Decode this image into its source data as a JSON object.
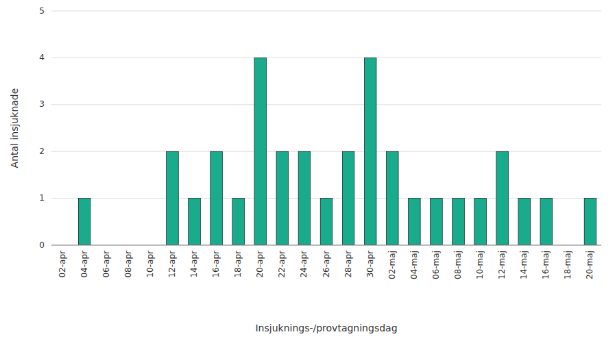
{
  "chart_data": {
    "type": "bar",
    "categories": [
      "02-apr",
      "04-apr",
      "06-apr",
      "08-apr",
      "10-apr",
      "12-apr",
      "14-apr",
      "16-apr",
      "18-apr",
      "20-apr",
      "22-apr",
      "24-apr",
      "26-apr",
      "28-apr",
      "30-apr",
      "02-maj",
      "04-maj",
      "06-maj",
      "08-maj",
      "10-maj",
      "12-maj",
      "14-maj",
      "16-maj",
      "18-maj",
      "20-maj"
    ],
    "values": [
      0,
      1,
      0,
      0,
      0,
      2,
      1,
      2,
      1,
      4,
      2,
      2,
      1,
      2,
      4,
      2,
      1,
      1,
      1,
      1,
      2,
      1,
      1,
      0,
      1
    ],
    "color": "#1aaa8c",
    "ylabel": "Antal insjuknade",
    "xlabel": "Insjuknings-/provtagningsdag",
    "ylim": [
      0,
      5
    ],
    "yticks": [
      0,
      1,
      2,
      3,
      4,
      5
    ],
    "grid": true
  }
}
